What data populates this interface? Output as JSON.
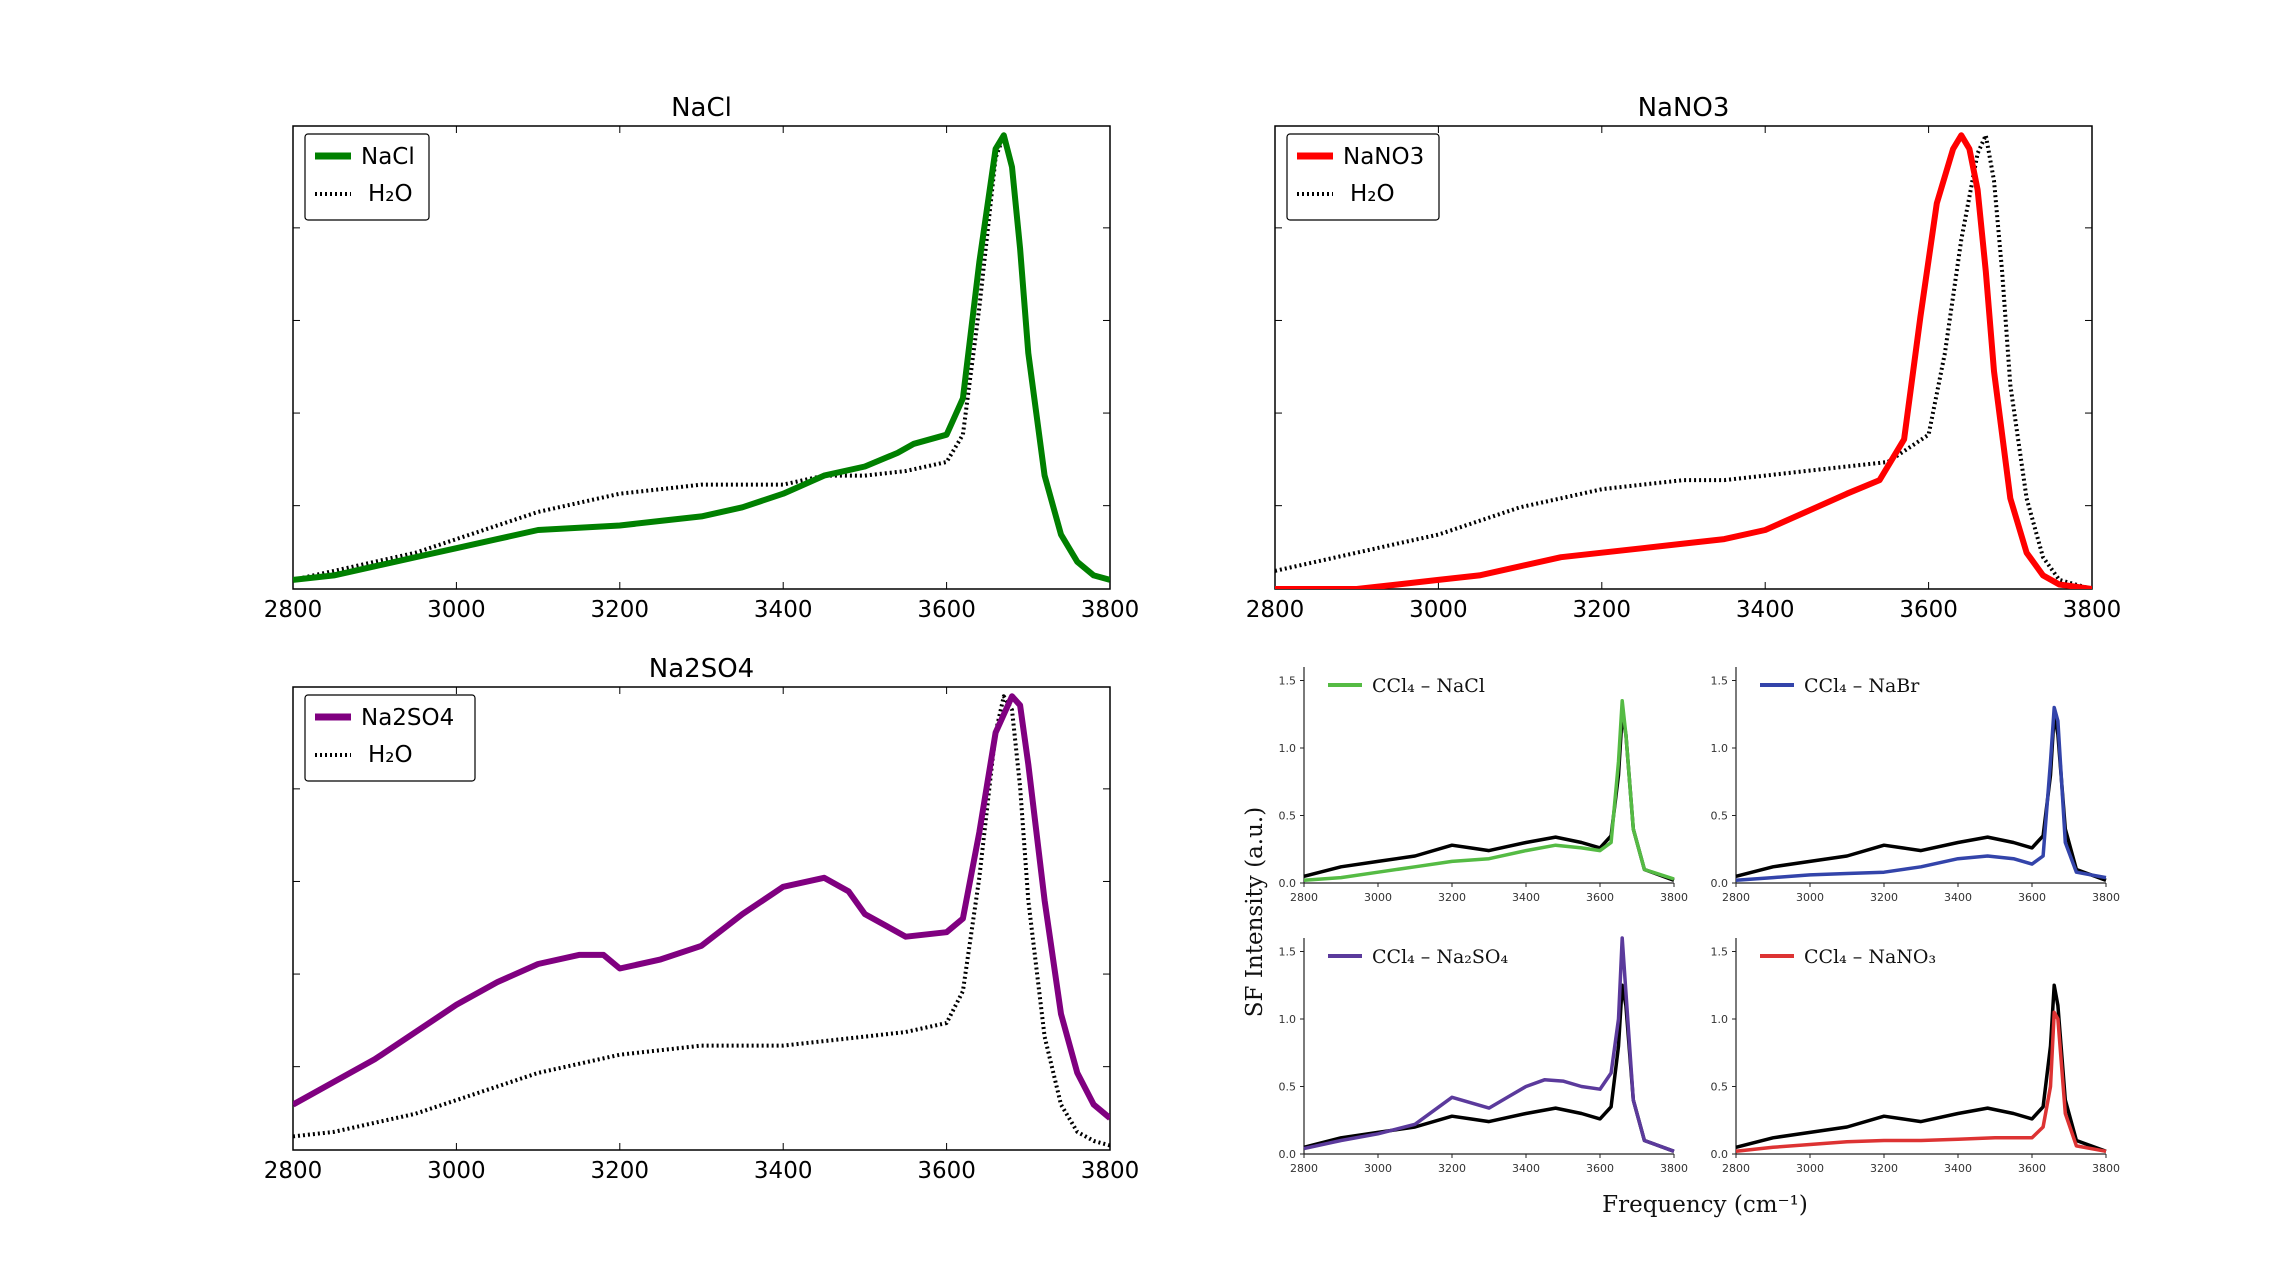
{
  "chart_data": [
    {
      "type": "line",
      "title": "NaCl",
      "xlim": [
        2800,
        3800
      ],
      "ylim": [
        0,
        1
      ],
      "xticks": [
        "2800",
        "3000",
        "3200",
        "3400",
        "3600",
        "3800"
      ],
      "legend": {
        "placement": "top-left",
        "entries": [
          "NaCl",
          "H₂O"
        ]
      },
      "series": [
        {
          "name": "NaCl",
          "color": "#008000",
          "style": "solid",
          "x": [
            2800,
            2850,
            2900,
            2950,
            3000,
            3050,
            3100,
            3150,
            3200,
            3250,
            3300,
            3350,
            3400,
            3450,
            3500,
            3540,
            3560,
            3600,
            3620,
            3640,
            3660,
            3670,
            3680,
            3690,
            3700,
            3720,
            3740,
            3760,
            3780,
            3800
          ],
          "y": [
            0.02,
            0.03,
            0.05,
            0.07,
            0.09,
            0.11,
            0.13,
            0.135,
            0.14,
            0.15,
            0.16,
            0.18,
            0.21,
            0.25,
            0.27,
            0.3,
            0.32,
            0.34,
            0.42,
            0.72,
            0.97,
            1.0,
            0.93,
            0.75,
            0.52,
            0.25,
            0.12,
            0.06,
            0.03,
            0.02
          ]
        },
        {
          "name": "H₂O",
          "color": "#000000",
          "style": "dotted",
          "x": [
            2800,
            2850,
            2900,
            2950,
            3000,
            3050,
            3100,
            3150,
            3200,
            3250,
            3300,
            3350,
            3400,
            3450,
            3500,
            3550,
            3600,
            3620,
            3640,
            3660,
            3670,
            3680,
            3690,
            3700,
            3720,
            3740,
            3760,
            3780,
            3800
          ],
          "y": [
            0.02,
            0.04,
            0.06,
            0.08,
            0.11,
            0.14,
            0.17,
            0.19,
            0.21,
            0.22,
            0.23,
            0.23,
            0.23,
            0.25,
            0.25,
            0.26,
            0.28,
            0.34,
            0.62,
            0.95,
            1.0,
            0.93,
            0.75,
            0.52,
            0.25,
            0.12,
            0.06,
            0.03,
            0.02
          ]
        }
      ]
    },
    {
      "type": "line",
      "title": "NaNO3",
      "xlim": [
        2800,
        3800
      ],
      "ylim": [
        0,
        1
      ],
      "xticks": [
        "2800",
        "3000",
        "3200",
        "3400",
        "3600",
        "3800"
      ],
      "legend": {
        "placement": "top-left",
        "entries": [
          "NaNO3",
          "H₂O"
        ]
      },
      "series": [
        {
          "name": "NaNO3",
          "color": "#ff0000",
          "style": "solid",
          "x": [
            2800,
            2900,
            2950,
            3000,
            3050,
            3100,
            3150,
            3200,
            3250,
            3300,
            3350,
            3400,
            3450,
            3500,
            3540,
            3570,
            3590,
            3610,
            3630,
            3640,
            3650,
            3660,
            3670,
            3680,
            3700,
            3720,
            3740,
            3760,
            3780,
            3800
          ],
          "y": [
            0.0,
            0.0,
            0.01,
            0.02,
            0.03,
            0.05,
            0.07,
            0.08,
            0.09,
            0.1,
            0.11,
            0.13,
            0.17,
            0.21,
            0.24,
            0.33,
            0.6,
            0.85,
            0.97,
            1.0,
            0.97,
            0.88,
            0.7,
            0.48,
            0.2,
            0.08,
            0.03,
            0.01,
            0.005,
            0.0
          ]
        },
        {
          "name": "H₂O",
          "color": "#000000",
          "style": "dotted",
          "x": [
            2800,
            2850,
            2900,
            2950,
            3000,
            3050,
            3100,
            3150,
            3200,
            3250,
            3300,
            3350,
            3400,
            3450,
            3500,
            3550,
            3600,
            3620,
            3640,
            3660,
            3670,
            3680,
            3690,
            3700,
            3720,
            3740,
            3760,
            3780,
            3800
          ],
          "y": [
            0.04,
            0.06,
            0.08,
            0.1,
            0.12,
            0.15,
            0.18,
            0.2,
            0.22,
            0.23,
            0.24,
            0.24,
            0.25,
            0.26,
            0.27,
            0.28,
            0.34,
            0.52,
            0.77,
            0.96,
            1.0,
            0.9,
            0.7,
            0.45,
            0.2,
            0.07,
            0.02,
            0.01,
            0.0
          ]
        }
      ]
    },
    {
      "type": "line",
      "title": "Na2SO4",
      "xlim": [
        2800,
        3800
      ],
      "ylim": [
        0,
        1
      ],
      "xticks": [
        "2800",
        "3000",
        "3200",
        "3400",
        "3600",
        "3800"
      ],
      "legend": {
        "placement": "top-left",
        "entries": [
          "Na2SO4",
          "H₂O"
        ]
      },
      "series": [
        {
          "name": "Na2SO4",
          "color": "#800080",
          "style": "solid",
          "x": [
            2800,
            2850,
            2900,
            2950,
            3000,
            3050,
            3100,
            3150,
            3180,
            3200,
            3250,
            3300,
            3350,
            3400,
            3450,
            3480,
            3500,
            3550,
            3600,
            3620,
            3640,
            3660,
            3680,
            3690,
            3700,
            3720,
            3740,
            3760,
            3780,
            3800
          ],
          "y": [
            0.1,
            0.15,
            0.2,
            0.26,
            0.32,
            0.37,
            0.41,
            0.43,
            0.43,
            0.4,
            0.42,
            0.45,
            0.52,
            0.58,
            0.6,
            0.57,
            0.52,
            0.47,
            0.48,
            0.51,
            0.7,
            0.92,
            1.0,
            0.98,
            0.85,
            0.55,
            0.3,
            0.17,
            0.1,
            0.07
          ]
        },
        {
          "name": "H₂O",
          "color": "#000000",
          "style": "dotted",
          "x": [
            2800,
            2850,
            2900,
            2950,
            3000,
            3050,
            3100,
            3150,
            3200,
            3250,
            3300,
            3350,
            3400,
            3450,
            3500,
            3550,
            3600,
            3620,
            3640,
            3660,
            3670,
            3680,
            3690,
            3700,
            3720,
            3740,
            3760,
            3780,
            3800
          ],
          "y": [
            0.03,
            0.04,
            0.06,
            0.08,
            0.11,
            0.14,
            0.17,
            0.19,
            0.21,
            0.22,
            0.23,
            0.23,
            0.23,
            0.24,
            0.25,
            0.26,
            0.28,
            0.35,
            0.6,
            0.92,
            1.0,
            0.97,
            0.8,
            0.55,
            0.25,
            0.1,
            0.04,
            0.02,
            0.01
          ]
        }
      ]
    },
    {
      "type": "line",
      "ylabel": "SF Intensity (a.u.)",
      "xlabel": "Frequency (cm⁻¹)",
      "panels": [
        {
          "legend": "CCl₄ – NaCl",
          "xlim": [
            2800,
            3800
          ],
          "ylim": [
            0,
            1.6
          ],
          "xticks": [
            "2800",
            "3000",
            "3200",
            "3400",
            "3600",
            "3800"
          ],
          "yticks": [
            "0.0",
            "0.5",
            "1.0",
            "1.5"
          ],
          "series": [
            {
              "name": "CCl₄ – NaCl",
              "color": "#55bb44",
              "x": [
                2800,
                2900,
                3000,
                3100,
                3200,
                3300,
                3400,
                3480,
                3550,
                3600,
                3630,
                3650,
                3660,
                3670,
                3690,
                3720,
                3800
              ],
              "y": [
                0.02,
                0.04,
                0.08,
                0.12,
                0.16,
                0.18,
                0.24,
                0.28,
                0.26,
                0.24,
                0.3,
                0.9,
                1.35,
                1.1,
                0.4,
                0.1,
                0.03
              ]
            },
            {
              "name": "",
              "color": "#000000",
              "x": [
                2800,
                2900,
                3000,
                3100,
                3200,
                3250,
                3300,
                3400,
                3480,
                3550,
                3600,
                3630,
                3650,
                3660,
                3670,
                3690,
                3720,
                3800
              ],
              "y": [
                0.05,
                0.12,
                0.16,
                0.2,
                0.28,
                0.26,
                0.24,
                0.3,
                0.34,
                0.3,
                0.26,
                0.35,
                0.8,
                1.25,
                1.1,
                0.4,
                0.1,
                0.02
              ]
            }
          ]
        },
        {
          "legend": "CCl₄ – NaBr",
          "xlim": [
            2800,
            3800
          ],
          "ylim": [
            0,
            1.6
          ],
          "xticks": [
            "2800",
            "3000",
            "3200",
            "3400",
            "3600",
            "3800"
          ],
          "yticks": [
            "0.0",
            "0.5",
            "1.0",
            "1.5"
          ],
          "series": [
            {
              "name": "CCl₄ – NaBr",
              "color": "#3344aa",
              "x": [
                2800,
                2900,
                3000,
                3100,
                3200,
                3300,
                3400,
                3480,
                3550,
                3600,
                3630,
                3650,
                3660,
                3670,
                3690,
                3720,
                3800
              ],
              "y": [
                0.02,
                0.04,
                0.06,
                0.07,
                0.08,
                0.12,
                0.18,
                0.2,
                0.18,
                0.14,
                0.2,
                0.9,
                1.3,
                1.2,
                0.3,
                0.08,
                0.04
              ]
            },
            {
              "name": "",
              "color": "#000000",
              "x": [
                2800,
                2900,
                3000,
                3100,
                3200,
                3250,
                3300,
                3400,
                3480,
                3550,
                3600,
                3630,
                3650,
                3660,
                3670,
                3690,
                3720,
                3800
              ],
              "y": [
                0.05,
                0.12,
                0.16,
                0.2,
                0.28,
                0.26,
                0.24,
                0.3,
                0.34,
                0.3,
                0.26,
                0.35,
                0.8,
                1.25,
                1.1,
                0.4,
                0.1,
                0.02
              ]
            }
          ]
        },
        {
          "legend": "CCl₄ – Na₂SO₄",
          "xlim": [
            2800,
            3800
          ],
          "ylim": [
            0,
            1.6
          ],
          "xticks": [
            "2800",
            "3000",
            "3200",
            "3400",
            "3600",
            "3800"
          ],
          "yticks": [
            "0.0",
            "0.5",
            "1.0",
            "1.5"
          ],
          "series": [
            {
              "name": "CCl₄ – Na₂SO₄",
              "color": "#5b3a9c",
              "x": [
                2800,
                2900,
                3000,
                3100,
                3150,
                3200,
                3250,
                3300,
                3350,
                3400,
                3450,
                3500,
                3550,
                3600,
                3630,
                3650,
                3660,
                3670,
                3690,
                3720,
                3800
              ],
              "y": [
                0.04,
                0.1,
                0.15,
                0.22,
                0.32,
                0.42,
                0.38,
                0.34,
                0.42,
                0.5,
                0.55,
                0.54,
                0.5,
                0.48,
                0.6,
                1.0,
                1.6,
                1.2,
                0.4,
                0.1,
                0.02
              ]
            },
            {
              "name": "",
              "color": "#000000",
              "x": [
                2800,
                2900,
                3000,
                3100,
                3200,
                3250,
                3300,
                3400,
                3480,
                3550,
                3600,
                3630,
                3650,
                3660,
                3670,
                3690,
                3720,
                3800
              ],
              "y": [
                0.05,
                0.12,
                0.16,
                0.2,
                0.28,
                0.26,
                0.24,
                0.3,
                0.34,
                0.3,
                0.26,
                0.35,
                0.8,
                1.25,
                1.1,
                0.4,
                0.1,
                0.02
              ]
            }
          ]
        },
        {
          "legend": "CCl₄ – NaNO₃",
          "xlim": [
            2800,
            3800
          ],
          "ylim": [
            0,
            1.6
          ],
          "xticks": [
            "2800",
            "3000",
            "3200",
            "3400",
            "3600",
            "3800"
          ],
          "yticks": [
            "0.0",
            "0.5",
            "1.0",
            "1.5"
          ],
          "series": [
            {
              "name": "CCl₄ – NaNO₃",
              "color": "#dd3333",
              "x": [
                2800,
                2900,
                3000,
                3100,
                3200,
                3300,
                3400,
                3500,
                3600,
                3630,
                3650,
                3660,
                3670,
                3690,
                3720,
                3800
              ],
              "y": [
                0.02,
                0.05,
                0.07,
                0.09,
                0.1,
                0.1,
                0.11,
                0.12,
                0.12,
                0.2,
                0.5,
                1.05,
                1.0,
                0.3,
                0.06,
                0.02
              ]
            },
            {
              "name": "",
              "color": "#000000",
              "x": [
                2800,
                2900,
                3000,
                3100,
                3200,
                3250,
                3300,
                3400,
                3480,
                3550,
                3600,
                3630,
                3650,
                3660,
                3670,
                3690,
                3720,
                3800
              ],
              "y": [
                0.05,
                0.12,
                0.16,
                0.2,
                0.28,
                0.26,
                0.24,
                0.3,
                0.34,
                0.3,
                0.26,
                0.35,
                0.8,
                1.25,
                1.1,
                0.4,
                0.1,
                0.02
              ]
            }
          ]
        }
      ]
    }
  ]
}
